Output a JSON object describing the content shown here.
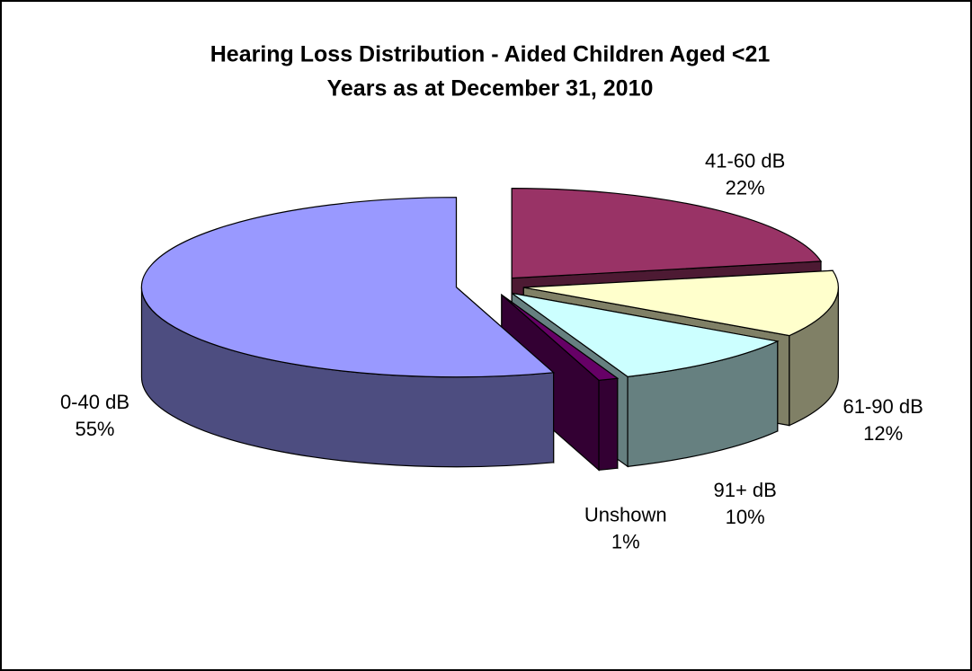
{
  "chart_data": {
    "type": "pie",
    "title": [
      "Hearing Loss Distribution - Aided Children Aged <21",
      "Years as at December 31, 2010"
    ],
    "categories": [
      "41-60 dB",
      "61-90 dB",
      "91+ dB",
      "Unshown",
      "0-40 dB"
    ],
    "values": [
      22,
      12,
      10,
      1,
      55
    ],
    "value_labels": [
      "22%",
      "12%",
      "10%",
      "1%",
      "55%"
    ],
    "colors": [
      "#993366",
      "#ffffcc",
      "#ccffff",
      "#660066",
      "#9999ff"
    ]
  }
}
